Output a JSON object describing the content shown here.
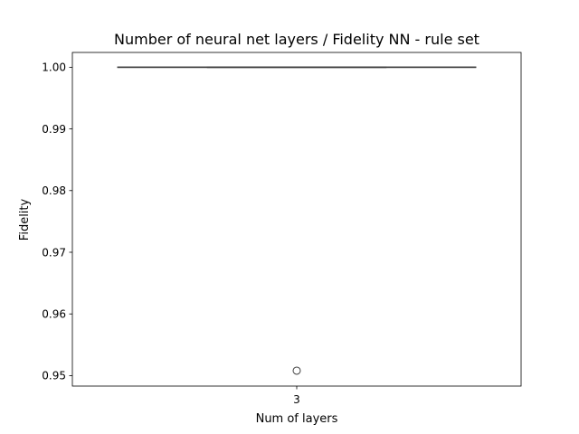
{
  "chart_data": {
    "type": "box",
    "title": "Number of neural net layers / Fidelity NN - rule set",
    "xlabel": "Num of layers",
    "ylabel": "Fidelity",
    "categories": [
      "3"
    ],
    "ylim": [
      0.9483,
      1.0024
    ],
    "yticks": [
      0.95,
      0.96,
      0.97,
      0.98,
      0.99,
      1.0
    ],
    "ytick_labels": [
      "0.95",
      "0.96",
      "0.97",
      "0.98",
      "0.99",
      "1.00"
    ],
    "boxes": [
      {
        "category": "3",
        "whisker_low": 1.0,
        "q1": 1.0,
        "median": 1.0,
        "q3": 1.0,
        "whisker_high": 1.0,
        "outliers": [
          0.9508
        ]
      }
    ],
    "grid": false,
    "colors": {
      "box_line": "#3f3f3f",
      "axes": "#000000"
    }
  }
}
